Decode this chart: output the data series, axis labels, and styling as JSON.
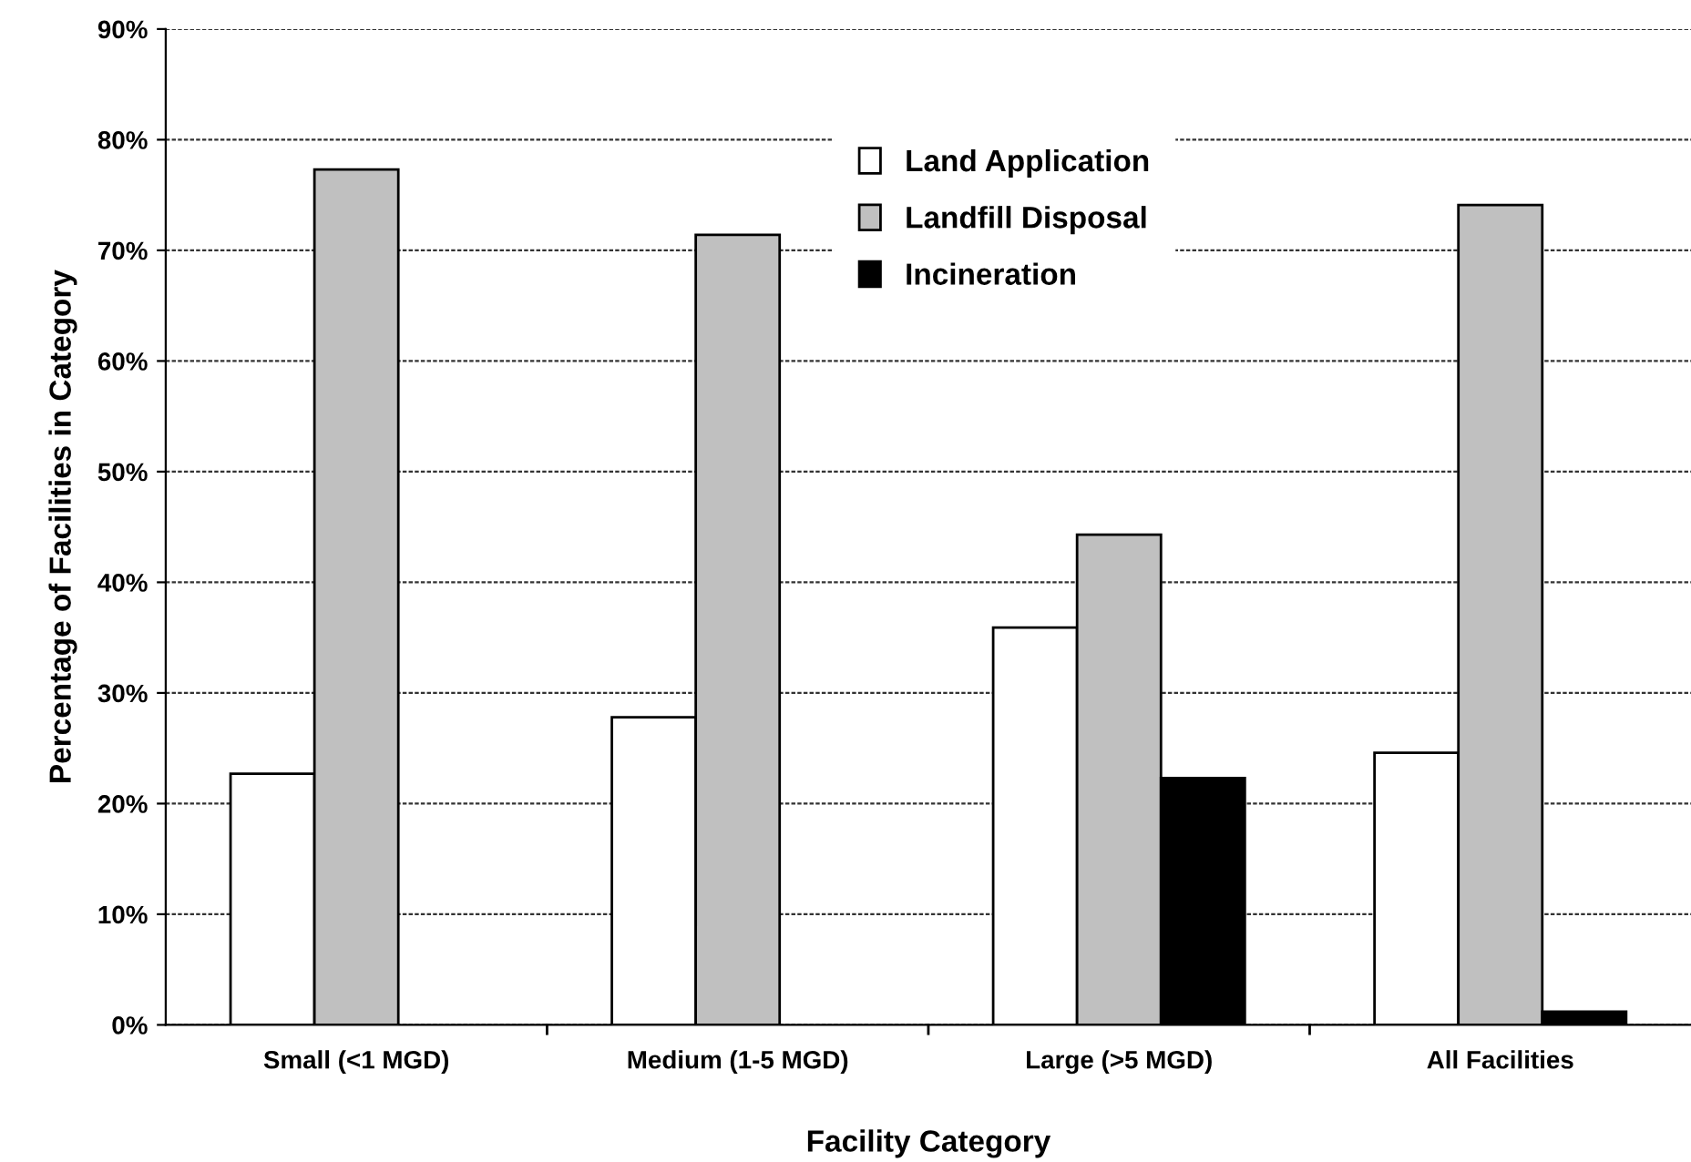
{
  "chart_data": {
    "type": "bar",
    "xlabel": "Facility Category",
    "ylabel": "Percentage of Facilities in Category",
    "categories": [
      "Small (<1 MGD)",
      "Medium (1-5 MGD)",
      "Large (>5 MGD)",
      "All Facilities"
    ],
    "series": [
      {
        "name": "Land Application",
        "color": "#ffffff",
        "values": [
          22.7,
          27.8,
          35.9,
          24.6
        ]
      },
      {
        "name": "Landfill Disposal",
        "color": "#c0c0c0",
        "values": [
          77.3,
          71.4,
          44.3,
          74.1
        ]
      },
      {
        "name": "Incineration",
        "color": "#000000",
        "values": [
          null,
          null,
          22.3,
          1.2
        ]
      }
    ],
    "ylim": [
      0,
      90
    ],
    "yticks": [
      {
        "value": 0,
        "label": "0%"
      },
      {
        "value": 10,
        "label": "10%"
      },
      {
        "value": 20,
        "label": "20%"
      },
      {
        "value": 30,
        "label": "30%"
      },
      {
        "value": 40,
        "label": "40%"
      },
      {
        "value": 50,
        "label": "50%"
      },
      {
        "value": 60,
        "label": "60%"
      },
      {
        "value": 70,
        "label": "70%"
      },
      {
        "value": 80,
        "label": "80%"
      },
      {
        "value": 90,
        "label": "90%"
      }
    ],
    "grid": "y",
    "legend": "top"
  }
}
